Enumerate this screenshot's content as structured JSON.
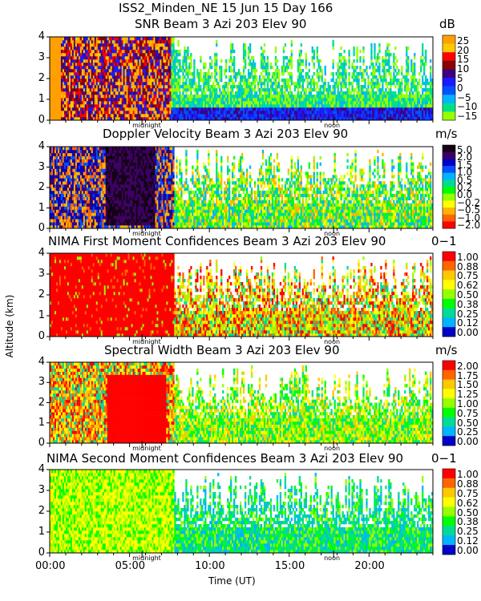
{
  "header": {
    "site_line": "ISS2_Minden_NE   15 Jun 15 Day 166"
  },
  "axes": {
    "ylabel": "Altitude (km)",
    "xlabel": "Time (UT)",
    "xticks": [
      "00:00",
      "05:00",
      "10:00",
      "15:00",
      "20:00"
    ],
    "marker_labels": [
      "midnight",
      "noon"
    ]
  },
  "chart_data": [
    {
      "type": "heatmap",
      "title": "SNR Beam 3 Azi 203 Elev 90",
      "unit": "dB",
      "x_range_hours": [
        0,
        24
      ],
      "y_range_km": [
        0,
        4
      ],
      "yticks": [
        "0",
        "1",
        "2",
        "3",
        "4"
      ],
      "colorbar_labels": [
        "25",
        "20",
        "15",
        "10",
        "5",
        "0",
        "−5",
        "−10",
        "−15"
      ],
      "colorbar_colors": [
        "#ffa000",
        "#ffc800",
        "#ff0000",
        "#8b0000",
        "#3c0080",
        "#1a1aff",
        "#0050ff",
        "#00b4ff",
        "#00e08c",
        "#96ff00"
      ]
    },
    {
      "type": "heatmap",
      "title": "Doppler Velocity Beam 3 Azi 203 Elev 90",
      "unit": "m/s",
      "x_range_hours": [
        0,
        24
      ],
      "y_range_km": [
        0,
        4
      ],
      "yticks": [
        "0",
        "1",
        "2",
        "3",
        "4"
      ],
      "colorbar_labels": [
        "5.0",
        "2.0",
        "1.5",
        "1.0",
        "0.5",
        "0.2",
        "0.0",
        "−0.2",
        "−0.5",
        "−1.0",
        "−2.0"
      ],
      "colorbar_colors": [
        "#140014",
        "#3c0064",
        "#0000c8",
        "#0050ff",
        "#00b4ff",
        "#00dc96",
        "#00ff00",
        "#96ff00",
        "#ffff00",
        "#ffb400",
        "#ff6400",
        "#ff0000"
      ]
    },
    {
      "type": "heatmap",
      "title": "NIMA First Moment Confidences Beam 3 Azi 203 Elev 90",
      "unit": "0−1",
      "x_range_hours": [
        0,
        24
      ],
      "y_range_km": [
        0,
        4
      ],
      "yticks": [
        "0",
        "1",
        "2",
        "3",
        "4"
      ],
      "colorbar_labels": [
        "1.00",
        "0.88",
        "0.75",
        "0.62",
        "0.50",
        "0.38",
        "0.25",
        "0.12",
        "0.00"
      ],
      "colorbar_colors": [
        "#ff0000",
        "#ff6400",
        "#ffc800",
        "#ffff00",
        "#96ff00",
        "#00ff00",
        "#00dc96",
        "#00b4ff",
        "#0000c8"
      ]
    },
    {
      "type": "heatmap",
      "title": "Spectral Width Beam 3 Azi 203 Elev 90",
      "unit": "m/s",
      "x_range_hours": [
        0,
        24
      ],
      "y_range_km": [
        0,
        4
      ],
      "yticks": [
        "0",
        "1",
        "2",
        "3",
        "4"
      ],
      "colorbar_labels": [
        "2.00",
        "1.75",
        "1.50",
        "1.25",
        "1.00",
        "0.75",
        "0.50",
        "0.25",
        "0.00"
      ],
      "colorbar_colors": [
        "#ff0000",
        "#ff6400",
        "#ffc800",
        "#ffff00",
        "#96ff00",
        "#00ff00",
        "#00dc96",
        "#00b4ff",
        "#0000c8"
      ]
    },
    {
      "type": "heatmap",
      "title": "NIMA Second Moment Confidences Beam 3 Azi 203 Elev 90",
      "unit": "0−1",
      "x_range_hours": [
        0,
        24
      ],
      "y_range_km": [
        0,
        4
      ],
      "yticks": [
        "0",
        "1",
        "2",
        "3",
        "4"
      ],
      "colorbar_labels": [
        "1.00",
        "0.88",
        "0.75",
        "0.62",
        "0.50",
        "0.38",
        "0.25",
        "0.12",
        "0.00"
      ],
      "colorbar_colors": [
        "#ff0000",
        "#ff6400",
        "#ffc800",
        "#ffff00",
        "#96ff00",
        "#00ff00",
        "#00dc96",
        "#00b4ff",
        "#0000c8"
      ]
    }
  ]
}
